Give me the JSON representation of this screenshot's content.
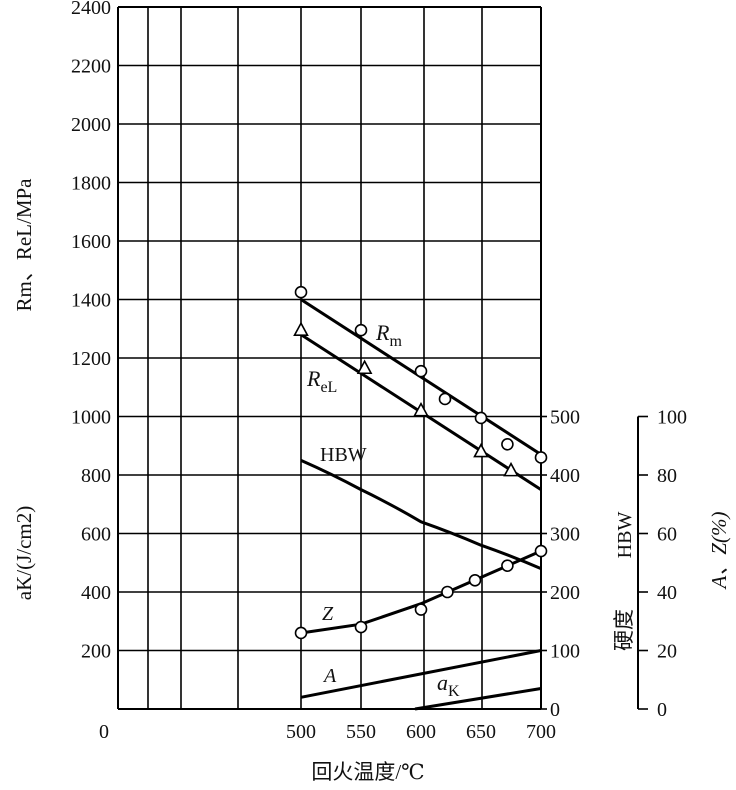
{
  "chart_data": {
    "type": "line",
    "x_axis": {
      "label_prefix": "回火温度/",
      "label_unit": "℃",
      "ticks": [
        500,
        550,
        600,
        650,
        700
      ],
      "origin_label": "0"
    },
    "left_axis_upper": {
      "label": "Rm、ReL/MPa",
      "ticks": [
        2400,
        2200,
        2000,
        1800,
        1600,
        1400,
        1200,
        1000
      ]
    },
    "left_axis_lower": {
      "label": "aK/(J/cm2)",
      "ticks": [
        800,
        600,
        400,
        200
      ]
    },
    "hardness_axis": {
      "label_chars": "硬度",
      "label_unit": "HBW",
      "ticks": [
        500,
        400,
        300,
        200,
        100,
        0
      ]
    },
    "az_axis": {
      "label": "A、Z(%)",
      "ticks": [
        100,
        80,
        60,
        40,
        20,
        0
      ]
    },
    "series": [
      {
        "name": "Rm",
        "marker": "circle",
        "points": [
          [
            500,
            1425
          ],
          [
            550,
            1295
          ],
          [
            600,
            1155
          ],
          [
            620,
            1060
          ],
          [
            650,
            995
          ],
          [
            672,
            905
          ],
          [
            700,
            860
          ]
        ],
        "line_from": [
          500,
          1400
        ],
        "line_to": [
          700,
          870
        ]
      },
      {
        "name": "ReL",
        "marker": "triangle",
        "points": [
          [
            500,
            1295
          ],
          [
            553,
            1165
          ],
          [
            600,
            1020
          ],
          [
            650,
            880
          ],
          [
            675,
            815
          ]
        ],
        "line_from": [
          500,
          1280
        ],
        "line_to": [
          700,
          750
        ]
      },
      {
        "name": "HBW",
        "marker": "none",
        "points": [
          [
            500,
            425
          ],
          [
            550,
            375
          ],
          [
            600,
            320
          ],
          [
            650,
            280
          ],
          [
            700,
            240
          ]
        ]
      },
      {
        "name": "Z",
        "marker": "circle",
        "points": [
          [
            500,
            26
          ],
          [
            550,
            28
          ],
          [
            600,
            34
          ],
          [
            622,
            40
          ],
          [
            645,
            44
          ],
          [
            672,
            49
          ],
          [
            700,
            54
          ]
        ],
        "line_points": [
          [
            500,
            26
          ],
          [
            550,
            29
          ],
          [
            600,
            36
          ],
          [
            650,
            45
          ],
          [
            700,
            54
          ]
        ]
      },
      {
        "name": "A",
        "marker": "none",
        "points": [
          [
            500,
            4
          ],
          [
            700,
            20
          ]
        ]
      },
      {
        "name": "aK",
        "marker": "none",
        "points": [
          [
            595,
            0
          ],
          [
            700,
            70
          ]
        ]
      }
    ],
    "labels": {
      "Rm_main": "R",
      "Rm_sub": "m",
      "ReL_main": "R",
      "ReL_sub": "eL",
      "HBW": "HBW",
      "Z": "Z",
      "A": "A",
      "aK_main": "a",
      "aK_sub": "K"
    }
  }
}
